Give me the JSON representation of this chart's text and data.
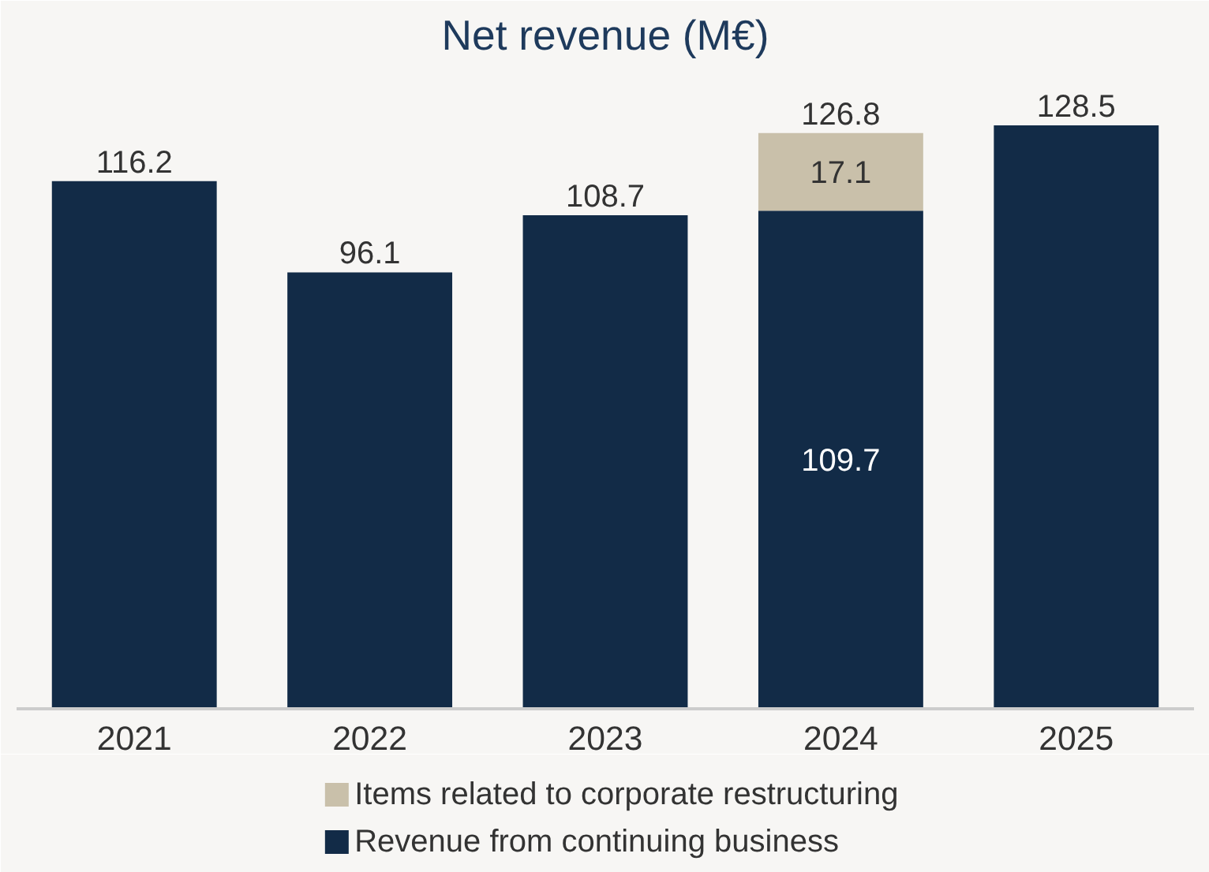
{
  "chart_data": {
    "type": "bar",
    "title": "Net revenue (M€)",
    "categories": [
      "2021",
      "2022",
      "2023",
      "2024",
      "2025"
    ],
    "stacked": true,
    "series": [
      {
        "name": "Revenue from continuing business",
        "color": "#122b47",
        "values": [
          116.2,
          96.1,
          108.7,
          109.7,
          128.5
        ],
        "value_labels": [
          null,
          null,
          null,
          "109.7",
          null
        ]
      },
      {
        "name": "Items related to corporate restructuring",
        "color": "#c9c0aa",
        "values": [
          null,
          null,
          null,
          17.1,
          null
        ],
        "value_labels": [
          null,
          null,
          null,
          "17.1",
          null
        ]
      }
    ],
    "totals": [
      "116.2",
      "96.1",
      "108.7",
      "126.8",
      "128.5"
    ],
    "legend": "bottom"
  }
}
